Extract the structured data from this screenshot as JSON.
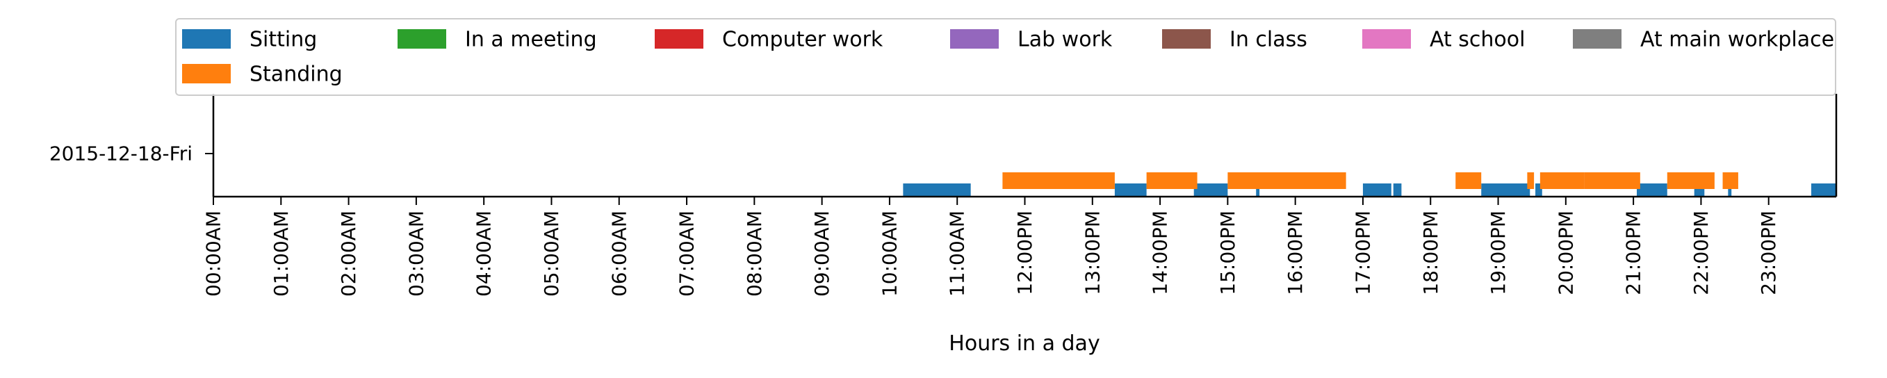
{
  "chart_data": {
    "type": "timeline",
    "title": "",
    "xlabel": "Hours in a day",
    "ylabel": "",
    "xlim": [
      0,
      24
    ],
    "y_categories": [
      "2015-12-18-Fri"
    ],
    "x_tick_values": [
      0,
      1,
      2,
      3,
      4,
      5,
      6,
      7,
      8,
      9,
      10,
      11,
      12,
      13,
      14,
      15,
      16,
      17,
      18,
      19,
      20,
      21,
      22,
      23
    ],
    "x_tick_labels": [
      "00:00AM",
      "01:00AM",
      "02:00AM",
      "03:00AM",
      "04:00AM",
      "05:00AM",
      "06:00AM",
      "07:00AM",
      "08:00AM",
      "09:00AM",
      "10:00AM",
      "11:00AM",
      "12:00PM",
      "13:00PM",
      "14:00PM",
      "15:00PM",
      "16:00PM",
      "17:00PM",
      "18:00PM",
      "19:00PM",
      "20:00PM",
      "21:00PM",
      "22:00PM",
      "23:00PM"
    ],
    "legend_position": "top",
    "grid": false,
    "series": [
      {
        "name": "Sitting",
        "color": "#1f77b4",
        "intervals": [
          [
            10.2,
            11.2
          ],
          [
            13.33,
            13.8
          ],
          [
            14.5,
            15.0
          ],
          [
            15.42,
            15.47
          ],
          [
            17.0,
            17.42
          ],
          [
            17.45,
            17.57
          ],
          [
            18.75,
            19.47
          ],
          [
            19.55,
            19.65
          ],
          [
            21.05,
            21.5
          ],
          [
            21.9,
            22.05
          ],
          [
            22.4,
            22.45
          ],
          [
            23.63,
            24.0
          ]
        ]
      },
      {
        "name": "Standing",
        "color": "#ff7f0e",
        "intervals": [
          [
            11.67,
            13.33
          ],
          [
            13.8,
            14.55
          ],
          [
            15.0,
            16.75
          ],
          [
            18.37,
            18.75
          ],
          [
            19.43,
            19.53
          ],
          [
            19.62,
            20.27
          ],
          [
            20.27,
            21.1
          ],
          [
            21.5,
            22.2
          ],
          [
            22.32,
            22.55
          ]
        ]
      },
      {
        "name": "In a meeting",
        "color": "#2ca02c",
        "intervals": []
      },
      {
        "name": "Computer work",
        "color": "#d62728",
        "intervals": []
      },
      {
        "name": "Lab work",
        "color": "#9467bd",
        "intervals": []
      },
      {
        "name": "In class",
        "color": "#8c564b",
        "intervals": []
      },
      {
        "name": "At school",
        "color": "#e377c2",
        "intervals": []
      },
      {
        "name": "At main workplace",
        "color": "#7f7f7f",
        "intervals": []
      }
    ]
  }
}
